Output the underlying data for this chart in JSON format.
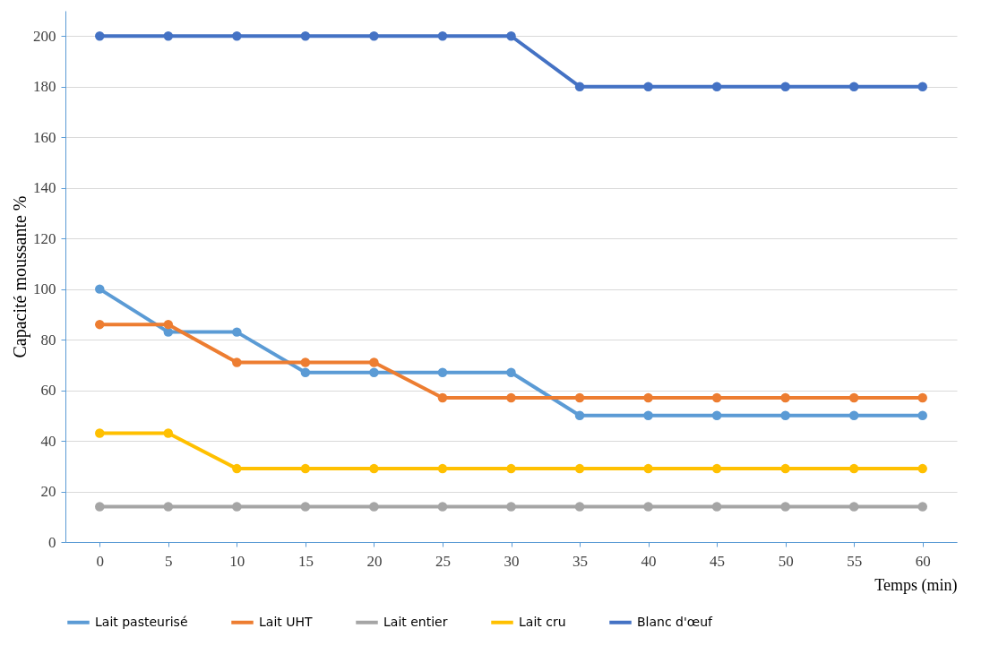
{
  "chart_data": {
    "type": "line",
    "xlabel": "Temps (min)",
    "ylabel": "Capacité moussante %",
    "categories": [
      "0",
      "5",
      "10",
      "15",
      "20",
      "25",
      "30",
      "35",
      "40",
      "45",
      "50",
      "55",
      "60"
    ],
    "series": [
      {
        "name": "Lait pasteurisé",
        "color": "#5b9bd5",
        "values": [
          100,
          83,
          83,
          67,
          67,
          67,
          67,
          50,
          50,
          50,
          50,
          50,
          50
        ]
      },
      {
        "name": "Lait UHT",
        "color": "#ed7d31",
        "values": [
          86,
          86,
          71,
          71,
          71,
          57,
          57,
          57,
          57,
          57,
          57,
          57,
          57
        ]
      },
      {
        "name": "Lait entier",
        "color": "#a5a5a5",
        "values": [
          14,
          14,
          14,
          14,
          14,
          14,
          14,
          14,
          14,
          14,
          14,
          14,
          14
        ]
      },
      {
        "name": "Lait cru",
        "color": "#ffc000",
        "values": [
          43,
          43,
          29,
          29,
          29,
          29,
          29,
          29,
          29,
          29,
          29,
          29,
          29
        ]
      },
      {
        "name": "Blanc d'œuf",
        "color": "#4472c4",
        "values": [
          200,
          200,
          200,
          200,
          200,
          200,
          200,
          180,
          180,
          180,
          180,
          180,
          180
        ]
      }
    ],
    "ylim": [
      0,
      210
    ],
    "yticks": [
      0,
      20,
      40,
      60,
      80,
      100,
      120,
      140,
      160,
      180,
      200
    ],
    "grid": "y",
    "legend": "bottom",
    "marker": "circle",
    "line_style": "solid"
  }
}
